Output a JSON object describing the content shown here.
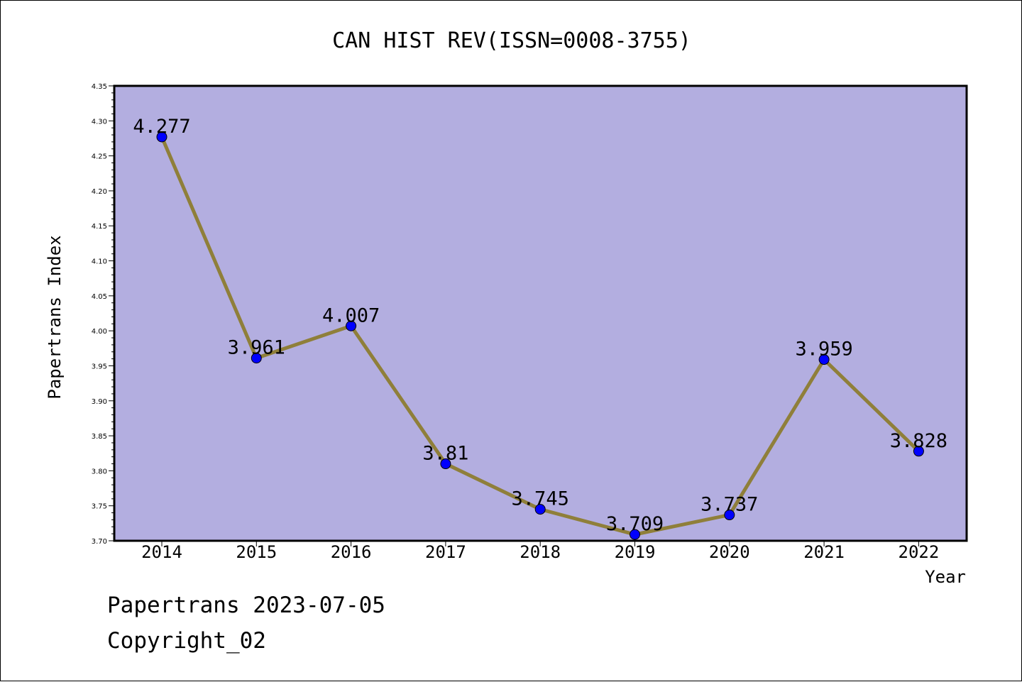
{
  "chart_data": {
    "type": "line",
    "title": "CAN HIST REV(ISSN=0008-3755)",
    "xlabel": "Year",
    "ylabel": "Papertrans Index",
    "categories": [
      "2014",
      "2015",
      "2016",
      "2017",
      "2018",
      "2019",
      "2020",
      "2021",
      "2022"
    ],
    "values": [
      4.277,
      3.961,
      4.007,
      3.81,
      3.745,
      3.709,
      3.737,
      3.959,
      3.828
    ],
    "data_labels": [
      "4.277",
      "3.961",
      "4.007",
      "3.81",
      "3.745",
      "3.709",
      "3.737",
      "3.959",
      "3.828"
    ],
    "ylim": [
      3.7,
      4.35
    ],
    "yticks": [
      "3.70",
      "3.75",
      "3.80",
      "3.85",
      "3.90",
      "3.95",
      "4.00",
      "4.05",
      "4.10",
      "4.15",
      "4.20",
      "4.25",
      "4.30",
      "4.35"
    ],
    "grid": false,
    "colors": {
      "plot_background": "#b3aee0",
      "line": "#8f7f3a",
      "marker": "#0000ff"
    }
  },
  "footer": {
    "line1": "Papertrans 2023-07-05",
    "line2": "Copyright_02"
  }
}
